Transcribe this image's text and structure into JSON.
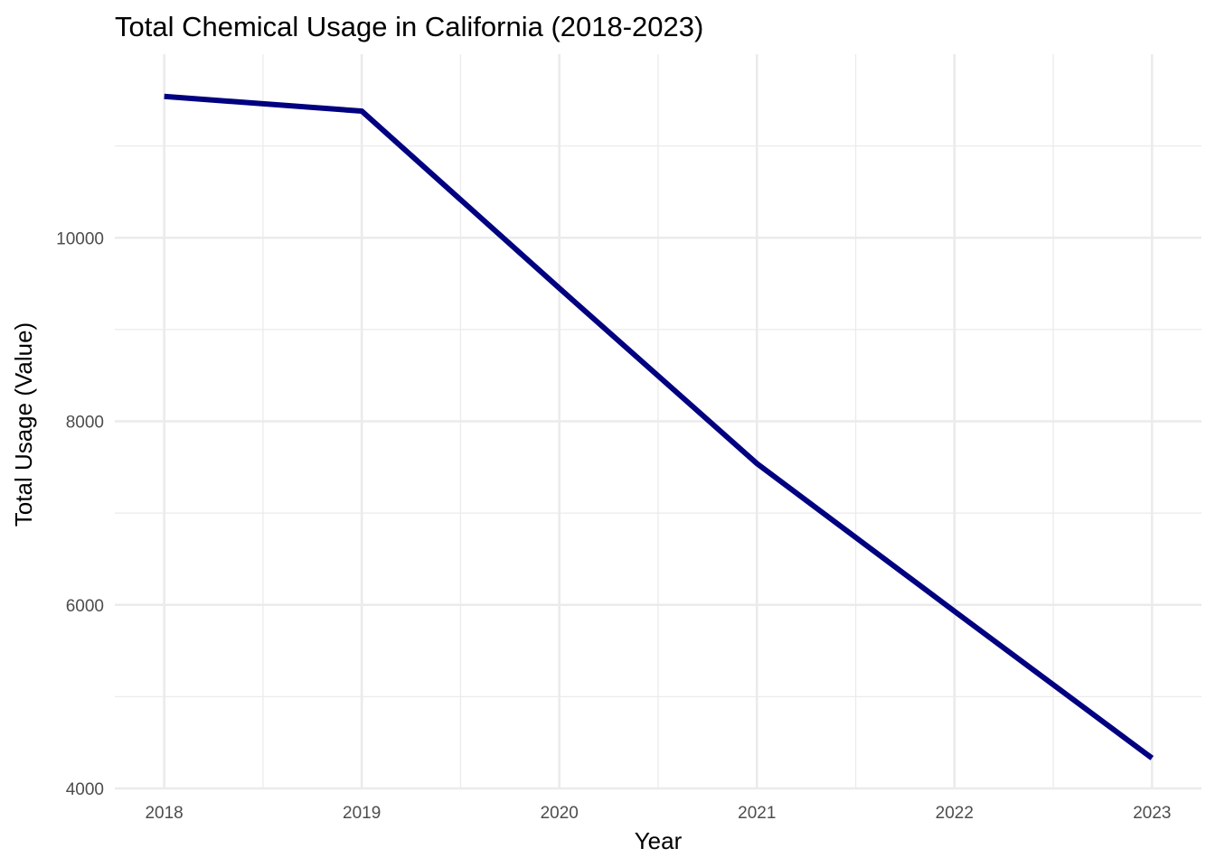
{
  "chart_data": {
    "type": "line",
    "title": "Total Chemical Usage in California (2018-2023)",
    "xlabel": "Year",
    "ylabel": "Total Usage (Value)",
    "x": [
      2018,
      2019,
      2020,
      2021,
      2022,
      2023
    ],
    "series": [
      {
        "values": [
          11540,
          11380,
          9450,
          7540,
          5930,
          4330
        ],
        "color": "#000080"
      }
    ],
    "x_ticks": [
      "2018",
      "2019",
      "2020",
      "2021",
      "2022",
      "2023"
    ],
    "y_ticks": [
      "4000",
      "6000",
      "8000",
      "10000"
    ],
    "xlim": [
      2017.75,
      2023.25
    ],
    "ylim": [
      4000,
      12000
    ],
    "grid": true,
    "legend": "none"
  }
}
